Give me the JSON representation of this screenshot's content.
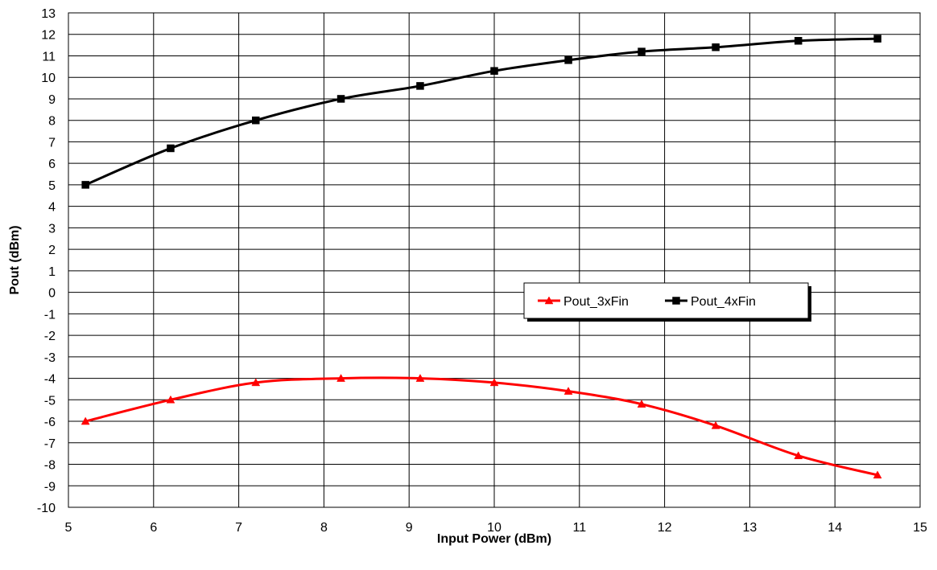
{
  "chart_data": {
    "type": "line",
    "title": "",
    "xlabel": "Input Power (dBm)",
    "ylabel": "Pout (dBm)",
    "xlim": [
      5,
      15
    ],
    "ylim": [
      -10,
      13
    ],
    "x_ticks": [
      5,
      6,
      7,
      8,
      9,
      10,
      11,
      12,
      13,
      14,
      15
    ],
    "y_ticks": [
      13,
      12,
      11,
      10,
      9,
      8,
      7,
      6,
      5,
      4,
      3,
      2,
      1,
      0,
      -1,
      -2,
      -3,
      -4,
      -5,
      -6,
      -7,
      -8,
      -9,
      -10
    ],
    "grid": true,
    "legend_position": "center-right",
    "series": [
      {
        "name": "Pout_3xFin",
        "color": "#ff0000",
        "marker": "triangle",
        "smooth": true,
        "x": [
          5.2,
          6.2,
          7.2,
          8.2,
          9.13,
          10.0,
          10.87,
          11.73,
          12.6,
          13.57,
          14.5
        ],
        "y": [
          -6.0,
          -5.0,
          -4.2,
          -4.0,
          -4.0,
          -4.2,
          -4.6,
          -5.2,
          -6.2,
          -7.6,
          -8.5
        ]
      },
      {
        "name": "Pout_4xFin",
        "color": "#000000",
        "marker": "square",
        "smooth": true,
        "x": [
          5.2,
          6.2,
          7.2,
          8.2,
          9.13,
          10.0,
          10.87,
          11.73,
          12.6,
          13.57,
          14.5
        ],
        "y": [
          5.0,
          6.7,
          8.0,
          9.0,
          9.6,
          10.3,
          10.8,
          11.2,
          11.4,
          11.7,
          11.8
        ]
      }
    ]
  }
}
